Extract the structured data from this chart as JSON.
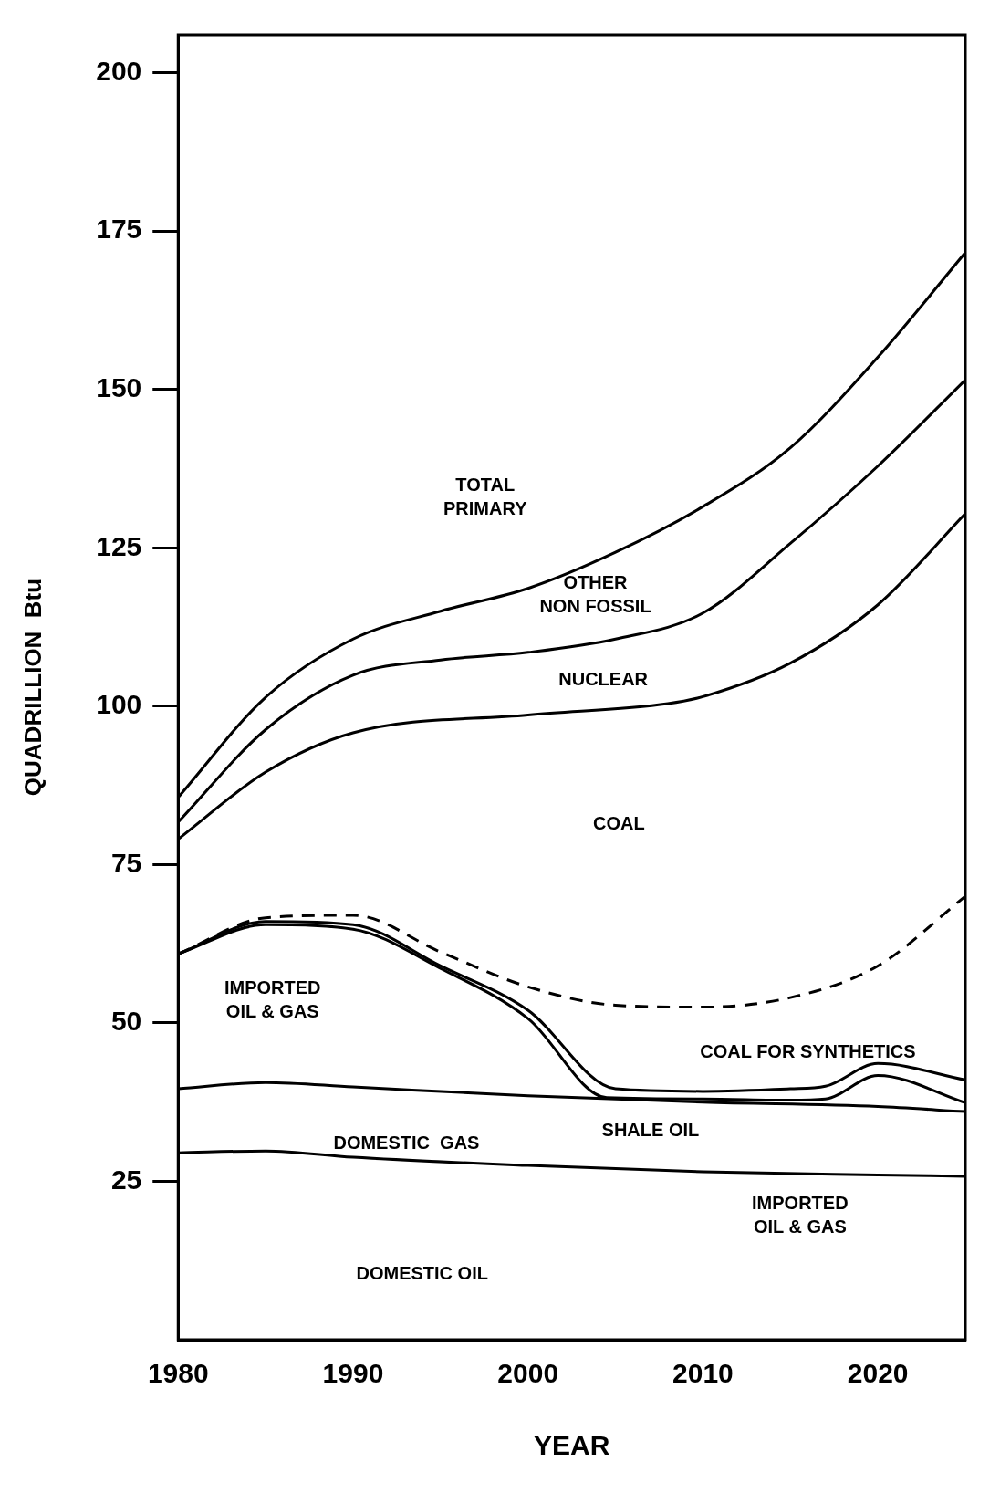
{
  "chart_data": {
    "type": "line",
    "xlabel": "YEAR",
    "ylabel": "QUADRILLION  Btu",
    "xlim": [
      1980,
      2025
    ],
    "ylim": [
      0,
      206
    ],
    "xticks": [
      1980,
      1990,
      2000,
      2010,
      2020
    ],
    "yticks": [
      25,
      50,
      75,
      100,
      125,
      150,
      175,
      200
    ],
    "grid": false,
    "legend": false,
    "marker": "none",
    "line_style": "solid",
    "series": [
      {
        "color": "#000000",
        "x": [
          1980,
          1985,
          1990,
          2000,
          2010,
          2020,
          2025
        ],
        "values": [
          29.5,
          29.8,
          28.8,
          27.5,
          26.5,
          26,
          25.8
        ]
      },
      {
        "color": "#000000",
        "x": [
          1980,
          1985,
          1990,
          2000,
          2010,
          2020,
          2025
        ],
        "values": [
          39.6,
          40.6,
          39.9,
          38.5,
          37.5,
          36.8,
          36
        ]
      },
      {
        "color": "#000000",
        "x": [
          1980,
          1985,
          1990,
          1995,
          2000,
          2004.5,
          2010,
          2015,
          2017,
          2020,
          2025
        ],
        "values": [
          60.9,
          65.5,
          64.8,
          58.6,
          50.7,
          38.2,
          38,
          37.8,
          38,
          41.7,
          37.4
        ]
      },
      {
        "color": "#000000",
        "x": [
          1980,
          1985,
          1990,
          1995,
          2000,
          2005,
          2010,
          2015,
          2017,
          2020,
          2025
        ],
        "values": [
          60.9,
          66,
          65.5,
          59,
          52,
          39.6,
          39.2,
          39.6,
          40,
          43.6,
          41
        ]
      },
      {
        "color": "#000000",
        "line_style": "dashed",
        "x": [
          1980,
          1985,
          1990,
          1995,
          2000,
          2005,
          2010,
          2015,
          2020,
          2025
        ],
        "values": [
          60.9,
          66.6,
          67,
          61.2,
          55.7,
          52.8,
          52.5,
          54,
          59,
          70
        ]
      },
      {
        "color": "#000000",
        "x": [
          1980,
          1985,
          1990,
          2000,
          2008,
          2010,
          2015,
          2020,
          2025
        ],
        "values": [
          79,
          89.6,
          95.8,
          98.6,
          100.4,
          101.5,
          106.8,
          116,
          130.4
        ]
      },
      {
        "color": "#000000",
        "x": [
          1980,
          1985,
          1990,
          1995,
          2000,
          2005,
          2010,
          2015,
          2020,
          2025
        ],
        "values": [
          81.7,
          96.3,
          104.9,
          107.3,
          108.5,
          110.6,
          114.7,
          125.7,
          137.9,
          151.5
        ]
      },
      {
        "color": "#000000",
        "x": [
          1980,
          1985,
          1990,
          1995,
          2000,
          2005,
          2010,
          2015,
          2020,
          2025
        ],
        "values": [
          85.6,
          101.4,
          110.6,
          115,
          118.6,
          124.3,
          131.5,
          140.8,
          155.1,
          171.6
        ]
      }
    ],
    "annotations": [
      "TOTAL\nPRIMARY",
      "OTHER\nNON FOSSIL",
      "NUCLEAR",
      "COAL",
      "IMPORTED\nOIL & GAS",
      "COAL FOR SYNTHETICS",
      "DOMESTIC  GAS",
      "SHALE OIL",
      "IMPORTED\nOIL & GAS",
      "DOMESTIC OIL"
    ]
  }
}
